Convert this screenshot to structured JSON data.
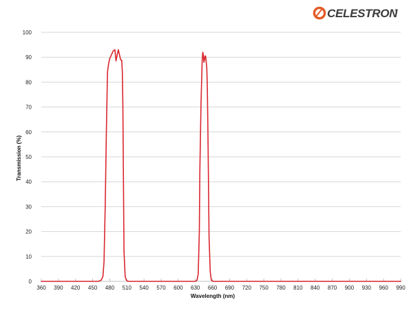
{
  "brand": {
    "name": "CELESTRON",
    "mark": "®",
    "logo_color": "#e35a25",
    "text_color": "#3a3a3a"
  },
  "chart_data": {
    "type": "line",
    "title": "",
    "xlabel": "Wavelength (nm)",
    "ylabel": "Transmission (%)",
    "xlim": [
      360,
      990
    ],
    "ylim": [
      0,
      100
    ],
    "xticks": [
      360,
      390,
      420,
      450,
      480,
      510,
      540,
      570,
      600,
      630,
      660,
      690,
      720,
      750,
      780,
      810,
      840,
      870,
      900,
      930,
      960,
      990
    ],
    "yticks": [
      0,
      10,
      20,
      30,
      40,
      50,
      60,
      70,
      80,
      90,
      100
    ],
    "grid": "horizontal",
    "legend": "none",
    "colors": {
      "line": "#d9262e",
      "grid": "#d6d6d6",
      "axis": "#bfbfbf"
    },
    "series": [
      {
        "x": [
          360,
          460,
          465,
          468,
          470,
          472,
          474,
          476,
          478,
          480,
          483,
          486,
          489,
          491,
          493,
          495,
          497,
          499,
          500,
          501,
          502,
          503,
          504,
          505,
          507,
          509,
          512,
          520,
          630,
          633,
          635,
          637,
          638,
          640,
          642,
          643,
          644,
          645,
          646,
          647,
          648,
          650,
          651,
          652,
          653,
          654,
          656,
          658,
          661,
          665,
          990
        ],
        "y": [
          0,
          0,
          0.5,
          2,
          8,
          30,
          60,
          84,
          87.5,
          89.5,
          91,
          92.5,
          93,
          88.5,
          91,
          93,
          91,
          89,
          88.8,
          88.8,
          84,
          70,
          40,
          12,
          2,
          0.5,
          0,
          0,
          0,
          0.5,
          3,
          20,
          45,
          72,
          89,
          92,
          91,
          88,
          89,
          90.5,
          90.5,
          86,
          78,
          62,
          40,
          18,
          4,
          0.5,
          0,
          0,
          0
        ]
      }
    ]
  }
}
